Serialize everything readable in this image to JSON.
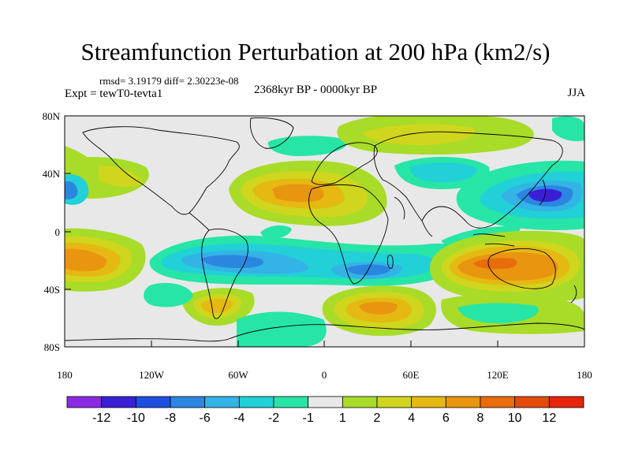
{
  "header": {
    "title": "Streamfunction Perturbation at 200 hPa (km2/s)",
    "rmsd": "rmsd= 3.19179 diff= 2.30223e-08",
    "experiment": "Expt = tewT0-tevta1",
    "period": "2368kyr BP - 0000kyr BP",
    "season": "JJA"
  },
  "axes": {
    "lat_labels": [
      "80N",
      "40N",
      "0",
      "40S",
      "80S"
    ],
    "lon_labels": [
      "180",
      "120W",
      "60W",
      "0",
      "60E",
      "120E",
      "180"
    ]
  },
  "colorbar": {
    "labels": [
      "-12",
      "-10",
      "-8",
      "-6",
      "-4",
      "-2",
      "-1",
      "1",
      "2",
      "4",
      "6",
      "8",
      "10",
      "12"
    ],
    "colors": [
      "#8a2be2",
      "#3a1fd6",
      "#1f4fe0",
      "#2b86df",
      "#33b3e6",
      "#22d0d8",
      "#27e5a6",
      "#e8e8e8",
      "#a8dc28",
      "#cfd61d",
      "#e6b812",
      "#e89510",
      "#e86c0c",
      "#e24b0c",
      "#e6250c"
    ]
  }
}
